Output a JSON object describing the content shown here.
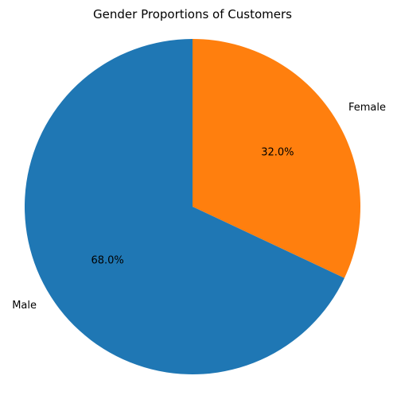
{
  "chart_data": {
    "type": "pie",
    "title": "Gender Proportions of Customers",
    "slices": [
      {
        "label": "Female",
        "value": 32.0,
        "display": "32.0%",
        "color": "#ff7f0e"
      },
      {
        "label": "Male",
        "value": 68.0,
        "display": "68.0%",
        "color": "#1f77b4"
      }
    ],
    "start_angle_deg": 90,
    "direction": "clockwise"
  }
}
